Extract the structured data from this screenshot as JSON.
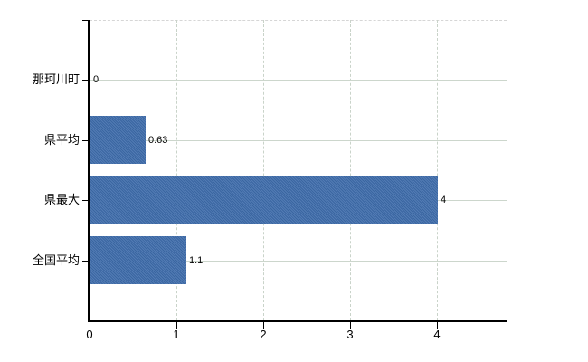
{
  "chart_data": {
    "type": "bar",
    "orientation": "horizontal",
    "title": "",
    "categories": [
      "那珂川町",
      "県平均",
      "県最大",
      "全国平均"
    ],
    "values": [
      0,
      0.63,
      4,
      1.1
    ],
    "value_labels": [
      "0",
      "0.63",
      "4",
      "1.1"
    ],
    "x_tick_labels": [
      "0",
      "1",
      "2",
      "3",
      "4"
    ],
    "x_tick_values": [
      0,
      1,
      2,
      3,
      4
    ],
    "xlim": [
      0,
      4.8
    ],
    "grid": true,
    "legend": false,
    "colors": {
      "bar": "#3e6cab",
      "grid_horizontal": "#ccd6cc",
      "grid_vertical": "#c9d3c9",
      "axis": "#000000",
      "plot_border_top": "#d6d6d6",
      "text": "#000000",
      "background": "#ffffff"
    }
  }
}
